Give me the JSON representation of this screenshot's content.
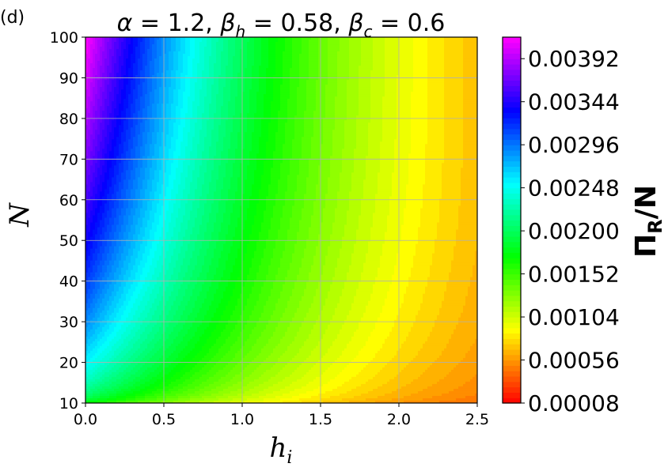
{
  "panel_label": "(d)",
  "chart_data": {
    "type": "heatmap",
    "subtype": "filled-contour",
    "title": "α = 1.2, β_h = 0.58, β_c = 0.6",
    "title_parts": {
      "alpha_sym": "α",
      "alpha_val": " = 1.2, ",
      "beta_sym": "β",
      "beta_h_sub": "h",
      "beta_h_val": " = 0.58, ",
      "beta_c_sub": "c",
      "beta_c_val": " = 0.6"
    },
    "xlabel": "h",
    "xlabel_sub": "i",
    "ylabel": "N",
    "colorbar_label": "Π",
    "colorbar_label_sub": "R",
    "colorbar_label_tail": "/N",
    "xlim": [
      0.0,
      2.5
    ],
    "ylim": [
      10,
      100
    ],
    "x_ticks": [
      "0.0",
      "0.5",
      "1.0",
      "1.5",
      "2.0",
      "2.5"
    ],
    "y_ticks": [
      "10",
      "20",
      "30",
      "40",
      "50",
      "60",
      "70",
      "80",
      "90",
      "100"
    ],
    "grid": true,
    "colormap": "gist_rainbow",
    "colorbar_ticks": [
      "0.00008",
      "0.00056",
      "0.00104",
      "0.00152",
      "0.00200",
      "0.00248",
      "0.00296",
      "0.00344",
      "0.00392"
    ],
    "colorbar_range": [
      8e-05,
      0.00416
    ],
    "surface_samples": [
      {
        "x": 0.0,
        "y": 100,
        "value": 0.0041
      },
      {
        "x": 0.0,
        "y": 50,
        "value": 0.0033
      },
      {
        "x": 0.0,
        "y": 10,
        "value": 0.0017
      },
      {
        "x": 0.5,
        "y": 100,
        "value": 0.0028
      },
      {
        "x": 1.0,
        "y": 100,
        "value": 0.0018
      },
      {
        "x": 1.5,
        "y": 100,
        "value": 0.0011
      },
      {
        "x": 2.0,
        "y": 100,
        "value": 0.0006
      },
      {
        "x": 2.5,
        "y": 100,
        "value": 0.0003
      },
      {
        "x": 2.5,
        "y": 10,
        "value": 0.0001
      }
    ]
  }
}
